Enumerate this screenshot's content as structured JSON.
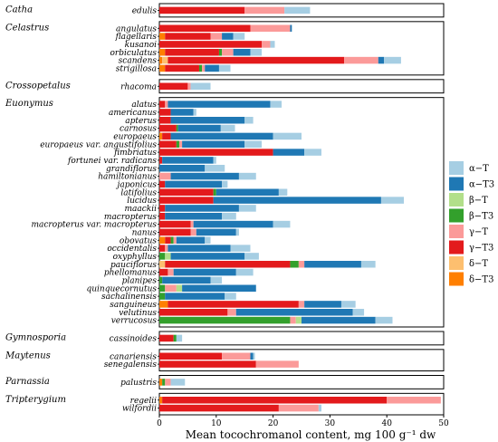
{
  "chart_data": {
    "type": "bar",
    "orientation": "horizontal",
    "stacked": true,
    "xlabel": "Mean tocochromanol content, mg 100 g⁻¹ dw",
    "xlim": [
      0,
      50
    ],
    "xticks": [
      0,
      10,
      20,
      30,
      40,
      50
    ],
    "legend_position": "right",
    "series": [
      {
        "name": "α−T",
        "color": "#a6cee3"
      },
      {
        "name": "α−T3",
        "color": "#1f78b4"
      },
      {
        "name": "β−T",
        "color": "#b2df8a"
      },
      {
        "name": "β−T3",
        "color": "#33a02c"
      },
      {
        "name": "γ−T",
        "color": "#fb9a99"
      },
      {
        "name": "γ−T3",
        "color": "#e31a1c"
      },
      {
        "name": "δ−T",
        "color": "#fdbf6f"
      },
      {
        "name": "δ−T3",
        "color": "#ff7f00"
      }
    ],
    "groups": [
      {
        "genus": "Catha",
        "species": [
          {
            "name": "edulis",
            "values": {
              "γ−T3": 15,
              "γ−T": 7,
              "α−T": 4.5
            }
          }
        ]
      },
      {
        "genus": "Celastrus",
        "species": [
          {
            "name": "angulatus",
            "values": {
              "γ−T3": 16,
              "γ−T": 7,
              "α−T3": 0.3
            }
          },
          {
            "name": "flagellaris",
            "values": {
              "δ−T3": 1,
              "γ−T3": 8,
              "γ−T": 2,
              "α−T3": 2,
              "α−T": 2
            }
          },
          {
            "name": "kusanoi",
            "values": {
              "γ−T3": 18,
              "γ−T": 1.5,
              "α−T": 0.8
            }
          },
          {
            "name": "orbiculatus",
            "values": {
              "δ−T3": 1,
              "γ−T3": 9.5,
              "γ−T": 2,
              "β−T3": 0.5,
              "α−T3": 3,
              "α−T": 2
            }
          },
          {
            "name": "scandens",
            "values": {
              "δ−T3": 0.5,
              "δ−T": 1,
              "γ−T3": 31,
              "γ−T": 6,
              "α−T3": 1,
              "α−T": 3
            }
          },
          {
            "name": "strigillosa",
            "values": {
              "δ−T3": 1,
              "γ−T3": 6,
              "γ−T": 0.5,
              "β−T3": 0.5,
              "α−T3": 2.5,
              "α−T": 2
            }
          }
        ]
      },
      {
        "genus": "Crossopetalus",
        "species": [
          {
            "name": "rhacoma",
            "values": {
              "γ−T3": 5,
              "γ−T": 0.5,
              "α−T": 3.5
            }
          }
        ]
      },
      {
        "genus": "Euonymus",
        "species": [
          {
            "name": "alatus",
            "values": {
              "γ−T3": 1,
              "γ−T": 0.5,
              "α−T3": 18,
              "α−T": 2
            }
          },
          {
            "name": "americanus",
            "values": {
              "γ−T3": 2,
              "α−T3": 4,
              "α−T": 0.5
            }
          },
          {
            "name": "apterus",
            "values": {
              "γ−T3": 2,
              "α−T3": 13,
              "α−T": 1.5
            }
          },
          {
            "name": "carnosus",
            "values": {
              "γ−T3": 3,
              "β−T3": 0.3,
              "α−T3": 7.5,
              "α−T": 2.5
            }
          },
          {
            "name": "europaeus",
            "values": {
              "δ−T3": 0.5,
              "γ−T3": 1.5,
              "α−T3": 18,
              "α−T": 5
            }
          },
          {
            "name": "europaeus var. angustifolius",
            "values": {
              "γ−T3": 3,
              "γ−T": 0.5,
              "β−T3": 0.5,
              "α−T3": 11,
              "α−T": 3
            }
          },
          {
            "name": "fimbriatus",
            "values": {
              "γ−T3": 20,
              "α−T3": 5.5,
              "α−T": 3
            }
          },
          {
            "name": "fortunei var. radicans",
            "values": {
              "γ−T3": 0.5,
              "α−T3": 9,
              "α−T": 0.5
            }
          },
          {
            "name": "grandiflorus",
            "values": {
              "α−T3": 8,
              "α−T": 3.5
            }
          },
          {
            "name": "hamiltonianus",
            "values": {
              "γ−T": 2,
              "α−T3": 12,
              "α−T": 3
            }
          },
          {
            "name": "japonicus",
            "values": {
              "γ−T3": 1,
              "α−T3": 10,
              "α−T": 1
            }
          },
          {
            "name": "latifolius",
            "values": {
              "γ−T3": 9.5,
              "β−T3": 0.5,
              "α−T3": 11,
              "α−T": 1.5
            }
          },
          {
            "name": "lucidus",
            "values": {
              "γ−T3": 9.5,
              "α−T3": 29.5,
              "α−T": 4
            }
          },
          {
            "name": "maackii",
            "values": {
              "γ−T3": 1,
              "α−T3": 13,
              "α−T": 3
            }
          },
          {
            "name": "macropterus",
            "values": {
              "γ−T3": 1,
              "α−T3": 10,
              "α−T": 2.5
            }
          },
          {
            "name": "macropterus var. macropterus",
            "values": {
              "γ−T3": 5.5,
              "γ−T": 0.5,
              "α−T3": 14,
              "α−T": 3
            }
          },
          {
            "name": "nanus",
            "values": {
              "γ−T3": 5.5,
              "γ−T": 1,
              "α−T3": 7,
              "α−T": 0.5
            }
          },
          {
            "name": "obovatus",
            "values": {
              "δ−T3": 1,
              "γ−T3": 1,
              "γ−T": 0.5,
              "β−T3": 0.5,
              "α−T3": 5,
              "α−T": 1
            }
          },
          {
            "name": "occidentalis",
            "values": {
              "γ−T3": 1,
              "γ−T": 0.5,
              "α−T3": 11,
              "α−T": 3.5
            }
          },
          {
            "name": "oxyphyllus",
            "values": {
              "β−T3": 1,
              "β−T": 1,
              "α−T3": 13,
              "α−T": 2.5
            }
          },
          {
            "name": "pauciflorus",
            "values": {
              "δ−T": 1,
              "γ−T3": 22,
              "γ−T": 1,
              "β−T3": 1.5,
              "α−T3": 10,
              "α−T": 2.5
            }
          },
          {
            "name": "phellomanus",
            "values": {
              "γ−T3": 1.5,
              "γ−T": 1,
              "α−T3": 11,
              "α−T": 3
            }
          },
          {
            "name": "planipes",
            "values": {
              "β−T3": 0.5,
              "α−T3": 8.5,
              "α−T": 2
            }
          },
          {
            "name": "quinquecornutus",
            "values": {
              "β−T3": 1,
              "γ−T": 2,
              "β−T": 1,
              "α−T3": 13
            }
          },
          {
            "name": "sachalinensis",
            "values": {
              "β−T3": 1,
              "α−T3": 10.5,
              "α−T": 2
            }
          },
          {
            "name": "sanguineus",
            "values": {
              "δ−T3": 1.5,
              "γ−T3": 23,
              "γ−T": 1,
              "α−T3": 6.5,
              "α−T": 2.5
            }
          },
          {
            "name": "velutinus",
            "values": {
              "γ−T3": 12,
              "γ−T": 1.5,
              "α−T3": 20.5,
              "α−T": 2
            }
          },
          {
            "name": "verrucosus",
            "values": {
              "β−T3": 23,
              "γ−T": 1,
              "β−T": 1,
              "α−T3": 13,
              "α−T": 3
            }
          }
        ]
      },
      {
        "genus": "Gymnosporia",
        "species": [
          {
            "name": "cassinoides",
            "values": {
              "γ−T3": 2.5,
              "β−T3": 0.5,
              "α−T": 1
            }
          }
        ]
      },
      {
        "genus": "Maytenus",
        "species": [
          {
            "name": "canariensis",
            "values": {
              "γ−T3": 11,
              "γ−T": 5,
              "α−T3": 0.5,
              "α−T": 0.3
            }
          },
          {
            "name": "senegalensis",
            "values": {
              "γ−T3": 17,
              "γ−T": 7.5
            }
          }
        ]
      },
      {
        "genus": "Parnassia",
        "species": [
          {
            "name": "palustris",
            "values": {
              "δ−T3": 0.5,
              "γ−T": 1,
              "β−T3": 0.5,
              "α−T": 2.5
            }
          }
        ]
      },
      {
        "genus": "Tripterygium",
        "species": [
          {
            "name": "regelii",
            "values": {
              "δ−T3": 0.5,
              "γ−T3": 39.5,
              "γ−T": 9.5
            }
          },
          {
            "name": "wilfordii",
            "values": {
              "γ−T3": 21,
              "γ−T": 7,
              "α−T": 0.5
            }
          }
        ]
      }
    ]
  }
}
